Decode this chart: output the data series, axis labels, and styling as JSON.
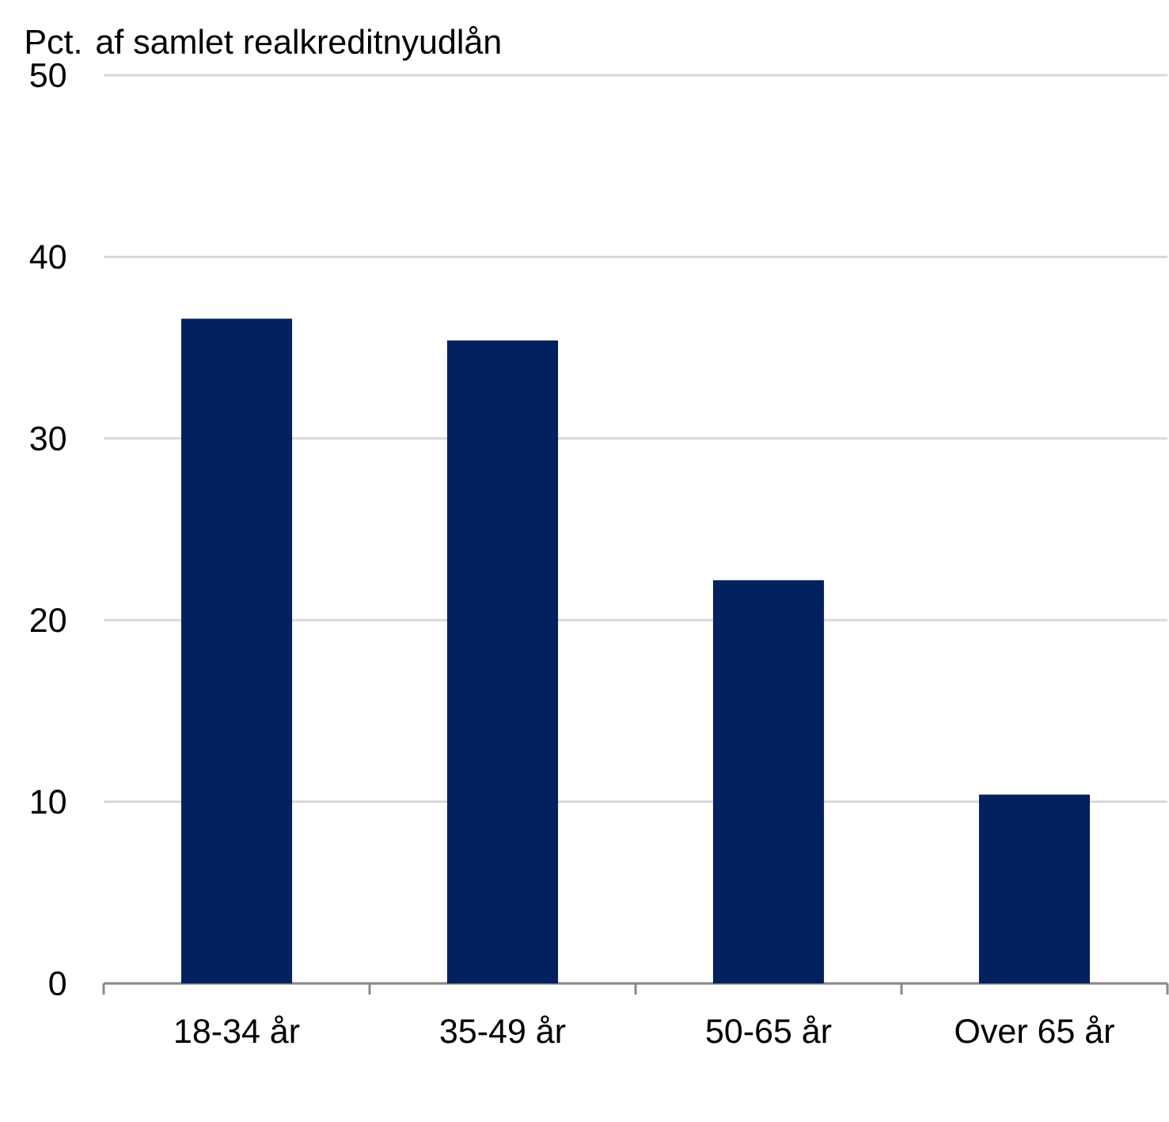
{
  "chart_data": {
    "type": "bar",
    "ylabel": "Pct. af samlet realkreditnyudlån",
    "categories": [
      "18-34 år",
      "35-49 år",
      "50-65 år",
      "Over 65 år"
    ],
    "values": [
      36.6,
      35.4,
      22.2,
      10.4
    ],
    "color": "#03215f",
    "ylim": [
      0,
      50
    ],
    "yticks": [
      0,
      10,
      20,
      30,
      40,
      50
    ],
    "grid": "y"
  }
}
